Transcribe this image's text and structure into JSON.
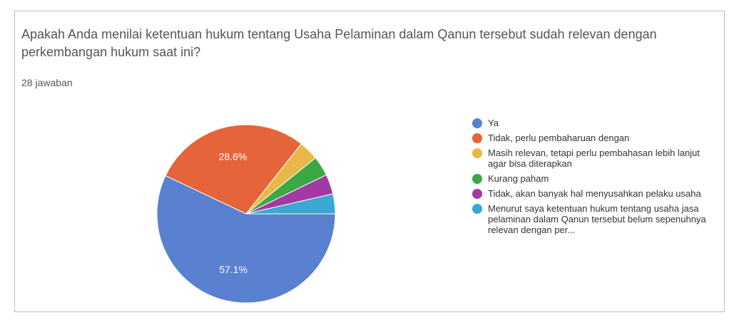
{
  "chart_data": {
    "type": "pie",
    "title": "Apakah Anda menilai ketentuan hukum tentang Usaha Pelaminan dalam Qanun tersebut sudah relevan dengan perkembangan hukum saat ini?",
    "subtitle": "28 jawaban",
    "series": [
      {
        "name": "Ya",
        "color": "#5a80d0"
      },
      {
        "name": "Tidak, perlu pembaharuan dengan",
        "color": "#e5643a"
      },
      {
        "name": "Masih relevan, tetapi perlu pembahasan lebih lanjut agar bisa diterapkan",
        "color": "#e8b84a"
      },
      {
        "name": "Kurang paham",
        "color": "#3aa843"
      },
      {
        "name": "Tidak, akan banyak hal menyusahkan pelaku usaha",
        "color": "#a33aa3"
      },
      {
        "name": "Menurut saya ketentuan hukum tentang usaha jasa pelaminan dalam Qanun tersebut belum sepenuhnya relevan dengan per...",
        "color": "#3aa8d0"
      }
    ],
    "values": [
      57.1,
      28.6,
      3.6,
      3.6,
      3.6,
      3.6
    ],
    "value_labels": [
      "57.1%",
      "28.6%",
      null,
      null,
      null,
      null
    ]
  }
}
